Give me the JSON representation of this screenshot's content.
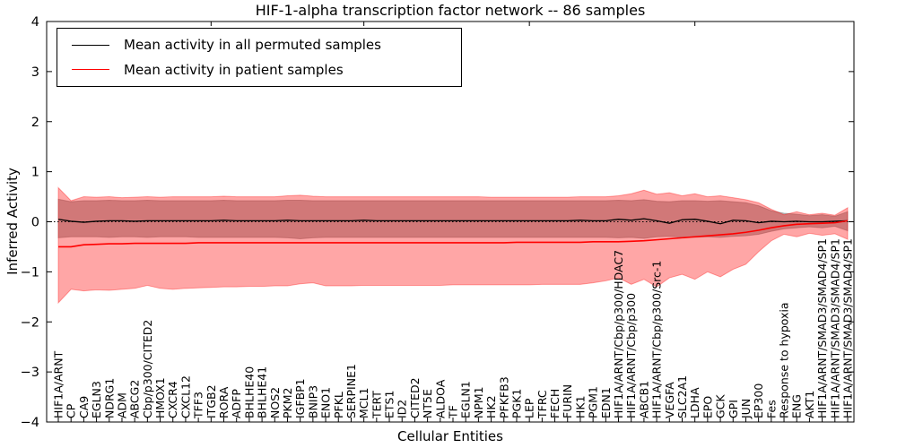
{
  "title": "HIF-1-alpha transcription factor network -- 86 samples",
  "xlabel": "Cellular Entities",
  "ylabel": "Inferred Activity",
  "legend": {
    "entries": [
      {
        "label": "Mean activity in all permuted samples",
        "color": "#000000"
      },
      {
        "label": "Mean activity in patient samples",
        "color": "#ff0000"
      }
    ],
    "position": "upper-left"
  },
  "colors": {
    "patient_line": "#ff0000",
    "permuted_line": "#000000",
    "patient_band": "rgba(255,0,0,0.35)",
    "permuted_band": "rgba(128,128,128,0.55)",
    "axis": "#000000",
    "zero_line": "#000000"
  },
  "yticks": [
    "4",
    "3",
    "2",
    "1",
    "0",
    "−1",
    "−2",
    "−3",
    "−4"
  ],
  "ytick_values": [
    4,
    3,
    2,
    1,
    0,
    -1,
    -2,
    -3,
    -4
  ],
  "chart_data": {
    "type": "line",
    "title": "HIF-1-alpha transcription factor network -- 86 samples",
    "xlabel": "Cellular Entities",
    "ylabel": "Inferred Activity",
    "ylim": [
      -4,
      4
    ],
    "grid": false,
    "zero_line": 0,
    "legend_position": "upper-left",
    "categories": [
      "HIF1A/ARNT",
      "CP",
      "CA9",
      "EGLN3",
      "NDRG1",
      "ADM",
      "ABCG2",
      "Cbp/p300/CITED2",
      "HMOX1",
      "CXCR4",
      "CXCL12",
      "TFF3",
      "ITGB2",
      "RORA",
      "ADFP",
      "BHLHE40",
      "BHLHE41",
      "NOS2",
      "PKM2",
      "IGFBP1",
      "BNIP3",
      "ENO1",
      "PFKL",
      "SERPINE1",
      "MCL1",
      "TERT",
      "ETS1",
      "ID2",
      "CITED2",
      "NT5E",
      "ALDOA",
      "TF",
      "EGLN1",
      "NPM1",
      "HK2",
      "PFKFB3",
      "PGK1",
      "LEP",
      "TFRC",
      "FECH",
      "FURIN",
      "HK1",
      "PGM1",
      "EDN1",
      "HIF1A/ARNT/Cbp/p300/HDAC7",
      "HIF1A/ARNT/Cbp/p300",
      "ABCB1",
      "HIF1A/ARNT/Cbp/p300/Src-1",
      "VEGFA",
      "SLC2A1",
      "LDHA",
      "EPO",
      "GCK",
      "GPI",
      "JUN",
      "EP300",
      "Fes",
      "Response to hypoxia",
      "ENG",
      "AKT1",
      "HIF1A/ARNT/SMAD3/SMAD4/SP1",
      "HIF1A/ARNT/SMAD3/SMAD4/SP1",
      "HIF1A/ARNT/SMAD3/SMAD4/SP1"
    ],
    "series": [
      {
        "name": "Mean activity in all permuted samples",
        "color": "#000000",
        "values": [
          0.05,
          0.01,
          -0.01,
          0.01,
          0.02,
          0.02,
          0.01,
          0.02,
          0.02,
          0.02,
          0.02,
          0.02,
          0.02,
          0.03,
          0.02,
          0.02,
          0.02,
          0.02,
          0.03,
          0.02,
          0.02,
          0.02,
          0.02,
          0.02,
          0.03,
          0.02,
          0.02,
          0.02,
          0.02,
          0.02,
          0.02,
          0.02,
          0.02,
          0.02,
          0.02,
          0.02,
          0.02,
          0.02,
          0.02,
          0.02,
          0.02,
          0.03,
          0.02,
          0.02,
          0.05,
          0.03,
          0.06,
          0.02,
          -0.03,
          0.04,
          0.05,
          0.01,
          -0.04,
          0.03,
          0.02,
          -0.02,
          0.01,
          0.0,
          0.01,
          0.0,
          0.0,
          0.01,
          0.02
        ]
      },
      {
        "name": "Mean activity in patient samples",
        "color": "#ff0000",
        "values": [
          -0.5,
          -0.5,
          -0.46,
          -0.45,
          -0.44,
          -0.44,
          -0.43,
          -0.43,
          -0.43,
          -0.43,
          -0.43,
          -0.42,
          -0.42,
          -0.42,
          -0.42,
          -0.42,
          -0.42,
          -0.42,
          -0.42,
          -0.42,
          -0.42,
          -0.42,
          -0.42,
          -0.42,
          -0.42,
          -0.42,
          -0.42,
          -0.42,
          -0.42,
          -0.42,
          -0.42,
          -0.42,
          -0.42,
          -0.42,
          -0.42,
          -0.42,
          -0.41,
          -0.41,
          -0.41,
          -0.41,
          -0.41,
          -0.41,
          -0.4,
          -0.4,
          -0.4,
          -0.39,
          -0.38,
          -0.36,
          -0.34,
          -0.32,
          -0.3,
          -0.28,
          -0.26,
          -0.24,
          -0.21,
          -0.17,
          -0.12,
          -0.08,
          -0.05,
          -0.04,
          -0.03,
          -0.02,
          0.02
        ]
      }
    ],
    "bands": [
      {
        "name": "permuted-samples-band",
        "color": "rgba(128,128,128,0.55)",
        "upper": [
          0.45,
          0.4,
          0.42,
          0.42,
          0.43,
          0.42,
          0.42,
          0.43,
          0.42,
          0.42,
          0.42,
          0.42,
          0.42,
          0.43,
          0.42,
          0.42,
          0.42,
          0.42,
          0.43,
          0.43,
          0.42,
          0.42,
          0.42,
          0.42,
          0.42,
          0.42,
          0.42,
          0.42,
          0.42,
          0.42,
          0.42,
          0.42,
          0.42,
          0.42,
          0.42,
          0.42,
          0.42,
          0.42,
          0.42,
          0.42,
          0.42,
          0.42,
          0.42,
          0.42,
          0.43,
          0.42,
          0.44,
          0.41,
          0.4,
          0.42,
          0.42,
          0.41,
          0.42,
          0.4,
          0.38,
          0.32,
          0.22,
          0.17,
          0.15,
          0.12,
          0.14,
          0.11,
          0.2
        ],
        "lower": [
          -0.32,
          -0.3,
          -0.3,
          -0.3,
          -0.31,
          -0.3,
          -0.3,
          -0.31,
          -0.3,
          -0.3,
          -0.3,
          -0.31,
          -0.31,
          -0.31,
          -0.31,
          -0.31,
          -0.31,
          -0.31,
          -0.32,
          -0.34,
          -0.32,
          -0.31,
          -0.31,
          -0.31,
          -0.31,
          -0.31,
          -0.31,
          -0.31,
          -0.31,
          -0.31,
          -0.31,
          -0.31,
          -0.31,
          -0.31,
          -0.31,
          -0.31,
          -0.31,
          -0.31,
          -0.31,
          -0.31,
          -0.31,
          -0.31,
          -0.31,
          -0.31,
          -0.32,
          -0.31,
          -0.33,
          -0.3,
          -0.29,
          -0.31,
          -0.31,
          -0.3,
          -0.31,
          -0.29,
          -0.28,
          -0.25,
          -0.19,
          -0.14,
          -0.12,
          -0.1,
          -0.12,
          -0.09,
          -0.18
        ]
      },
      {
        "name": "patient-samples-band",
        "color": "rgba(255,0,0,0.35)",
        "upper": [
          0.68,
          0.42,
          0.5,
          0.49,
          0.5,
          0.48,
          0.49,
          0.5,
          0.49,
          0.5,
          0.5,
          0.5,
          0.5,
          0.51,
          0.5,
          0.5,
          0.5,
          0.5,
          0.52,
          0.53,
          0.51,
          0.5,
          0.5,
          0.5,
          0.5,
          0.5,
          0.5,
          0.5,
          0.5,
          0.5,
          0.5,
          0.5,
          0.5,
          0.5,
          0.49,
          0.49,
          0.49,
          0.49,
          0.49,
          0.49,
          0.49,
          0.5,
          0.5,
          0.5,
          0.52,
          0.56,
          0.63,
          0.55,
          0.58,
          0.52,
          0.56,
          0.5,
          0.52,
          0.48,
          0.44,
          0.38,
          0.25,
          0.14,
          0.2,
          0.14,
          0.17,
          0.13,
          0.28
        ],
        "lower": [
          -1.62,
          -1.35,
          -1.38,
          -1.36,
          -1.37,
          -1.35,
          -1.33,
          -1.27,
          -1.33,
          -1.35,
          -1.33,
          -1.32,
          -1.31,
          -1.3,
          -1.3,
          -1.29,
          -1.29,
          -1.28,
          -1.28,
          -1.24,
          -1.22,
          -1.28,
          -1.28,
          -1.28,
          -1.27,
          -1.27,
          -1.27,
          -1.27,
          -1.27,
          -1.27,
          -1.27,
          -1.26,
          -1.26,
          -1.26,
          -1.26,
          -1.26,
          -1.26,
          -1.26,
          -1.25,
          -1.25,
          -1.25,
          -1.25,
          -1.22,
          -1.18,
          -1.12,
          -1.25,
          -1.15,
          -1.3,
          -1.12,
          -1.05,
          -1.15,
          -1.0,
          -1.1,
          -0.95,
          -0.85,
          -0.6,
          -0.38,
          -0.25,
          -0.3,
          -0.23,
          -0.27,
          -0.24,
          -0.35
        ]
      }
    ],
    "notes": "Rightmost x tick labels overlap heavily and are partially unreadable in the source image."
  }
}
